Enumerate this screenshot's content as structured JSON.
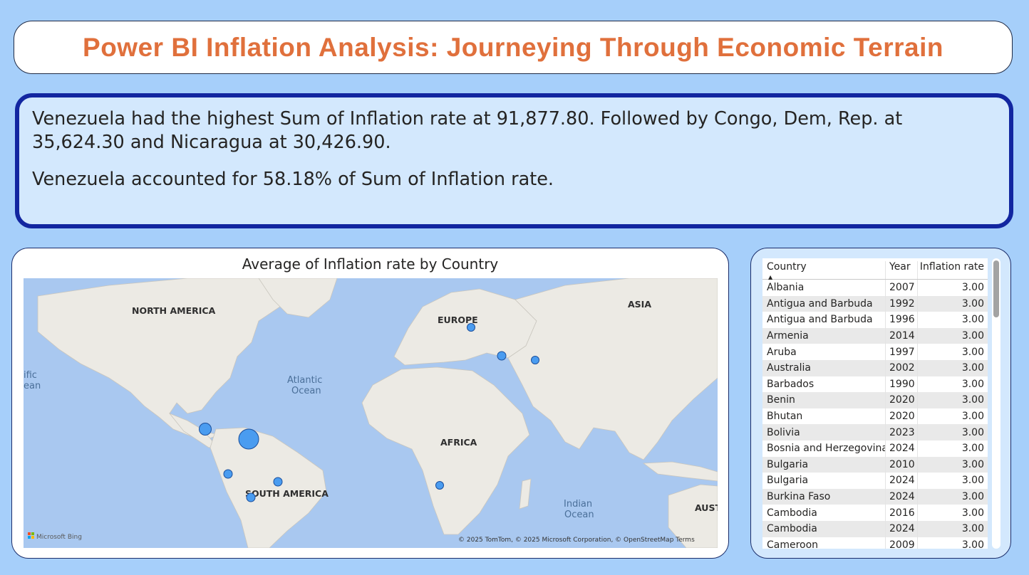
{
  "title": "Power BI Inflation Analysis: Journeying Through Economic Terrain",
  "narrative": {
    "line1": "Venezuela had the highest Sum of Inflation rate at 91,877.80. Followed by Congo, Dem, Rep. at 35,624.30 and Nicaragua at 30,426.90.",
    "line2": "Venezuela accounted for 58.18% of Sum of Inflation rate."
  },
  "map": {
    "title": "Average of Inflation rate by Country",
    "labels": {
      "north_america": "NORTH AMERICA",
      "south_america": "SOUTH AMERICA",
      "europe": "EUROPE",
      "asia": "ASIA",
      "africa": "AFRICA",
      "atlantic_1": "Atlantic",
      "atlantic_2": "Ocean",
      "indian_1": "Indian",
      "indian_2": "Ocean",
      "pacific_1": "ific",
      "pacific_2": "ean",
      "australia_partial": "AUST"
    },
    "attribution": "© 2025 TomTom, © 2025 Microsoft Corporation, © OpenStreetMap  Terms",
    "bing_logo": "Microsoft Bing",
    "colors": {
      "bubble_fill": "#4a9cf0",
      "bubble_stroke": "#1b4f9c",
      "land": "#eceae4",
      "water": "#a9c8f0"
    }
  },
  "table": {
    "headers": [
      "Country",
      "Year",
      "Inflation rate"
    ],
    "sort_icon": "sort-ascending-icon",
    "rows": [
      [
        "Albania",
        "2007",
        "3.00"
      ],
      [
        "Antigua and Barbuda",
        "1992",
        "3.00"
      ],
      [
        "Antigua and Barbuda",
        "1996",
        "3.00"
      ],
      [
        "Armenia",
        "2014",
        "3.00"
      ],
      [
        "Aruba",
        "1997",
        "3.00"
      ],
      [
        "Australia",
        "2002",
        "3.00"
      ],
      [
        "Barbados",
        "1990",
        "3.00"
      ],
      [
        "Benin",
        "2020",
        "3.00"
      ],
      [
        "Bhutan",
        "2020",
        "3.00"
      ],
      [
        "Bolivia",
        "2023",
        "3.00"
      ],
      [
        "Bosnia and Herzegovina",
        "2024",
        "3.00"
      ],
      [
        "Bulgaria",
        "2010",
        "3.00"
      ],
      [
        "Bulgaria",
        "2024",
        "3.00"
      ],
      [
        "Burkina Faso",
        "2024",
        "3.00"
      ],
      [
        "Cambodia",
        "2016",
        "3.00"
      ],
      [
        "Cambodia",
        "2024",
        "3.00"
      ],
      [
        "Cameroon",
        "2009",
        "3.00"
      ]
    ]
  }
}
